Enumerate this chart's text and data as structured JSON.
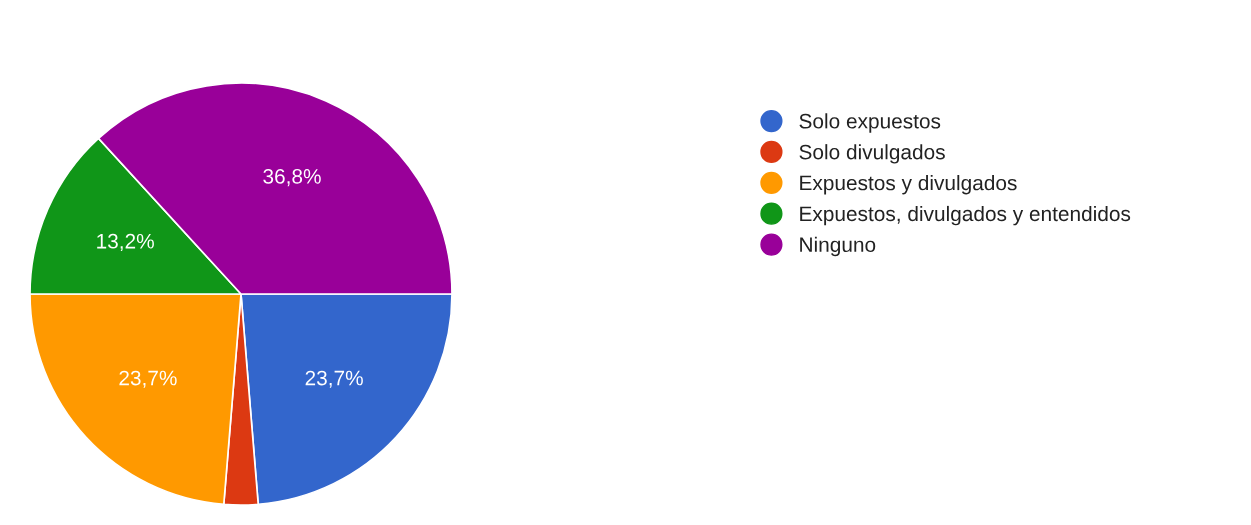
{
  "chart_data": {
    "type": "pie",
    "categories": [
      "Solo expuestos",
      "Solo divulgados",
      "Expuestos y divulgados",
      "Expuestos, divulgados y entendidos",
      "Ninguno"
    ],
    "values": [
      23.7,
      2.6,
      23.7,
      13.2,
      36.8
    ],
    "value_labels": [
      "23,7%",
      null,
      "23,7%",
      "13,2%",
      "36,8%"
    ],
    "colors": [
      "#3366cc",
      "#dc3912",
      "#ff9900",
      "#109618",
      "#990099"
    ],
    "legend": "right"
  }
}
